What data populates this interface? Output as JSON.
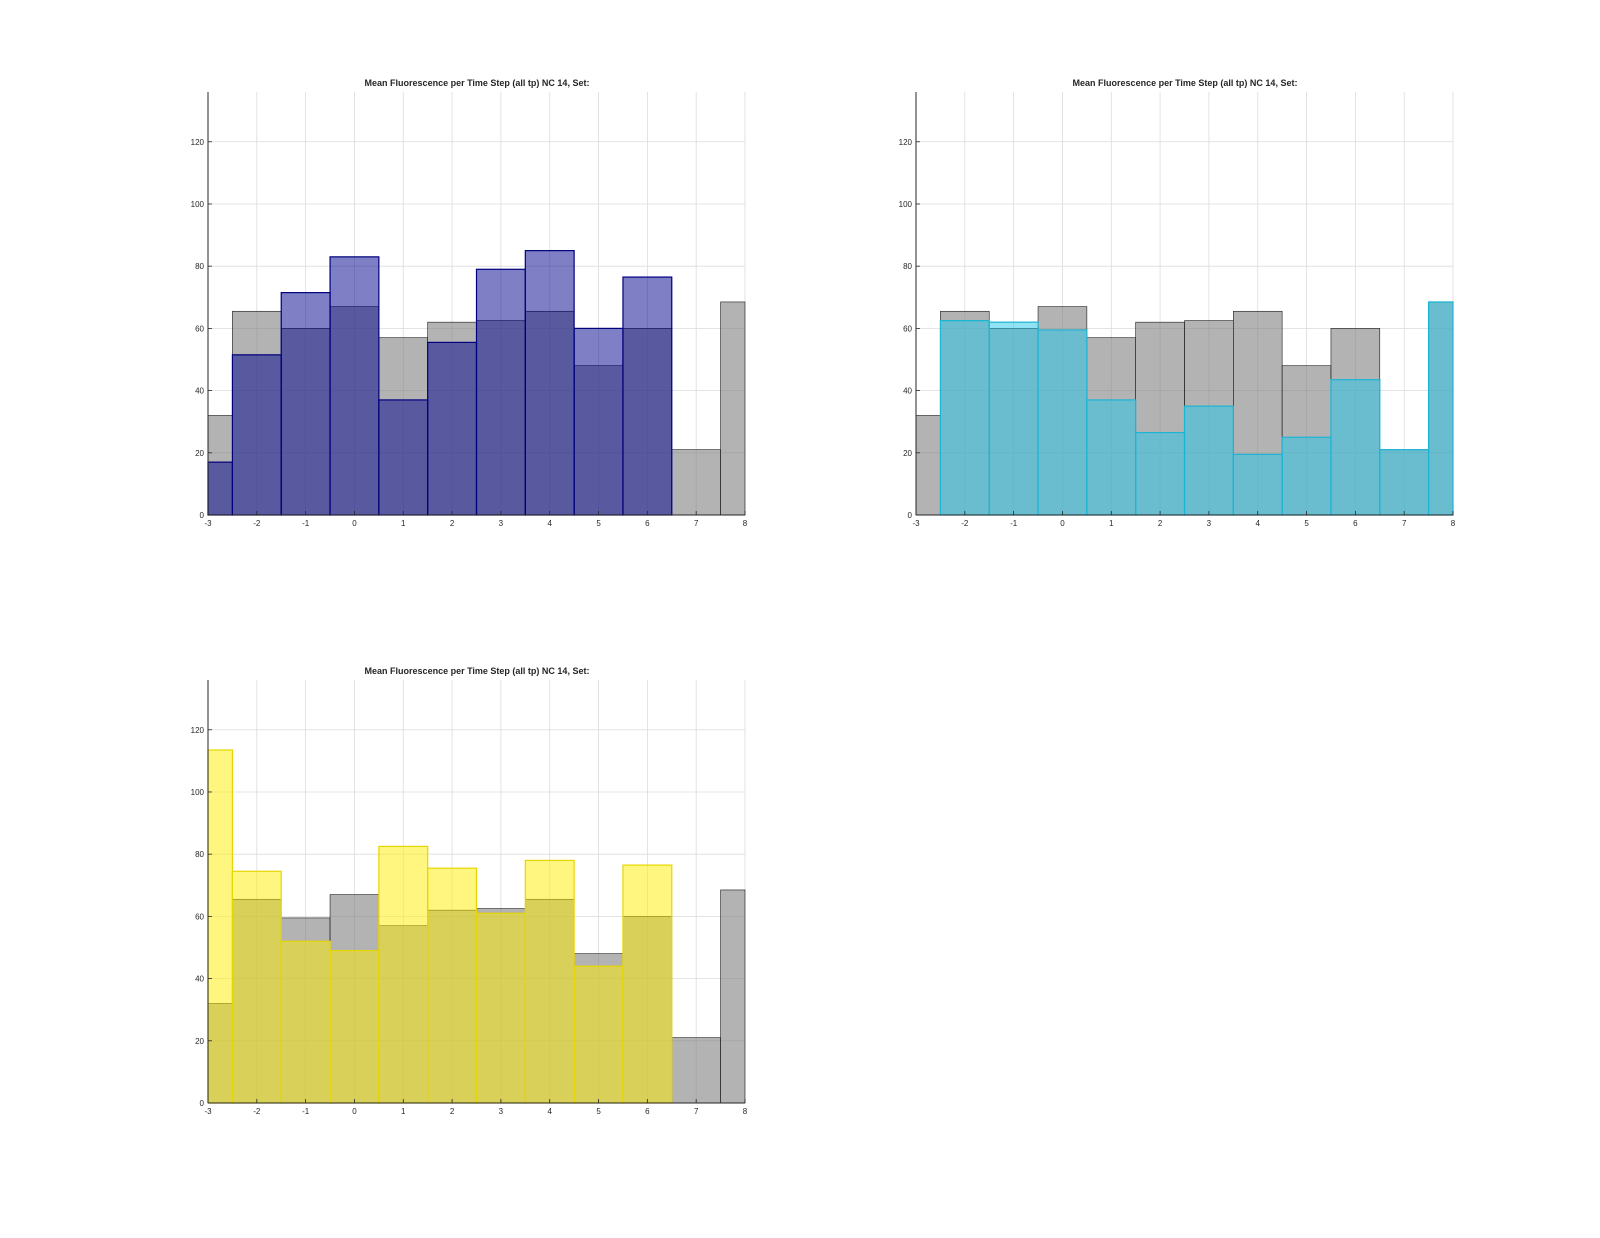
{
  "figure": {
    "charts": [
      {
        "title": "Mean Fluorescence per Time Step (all tp) NC 14, Set:",
        "xticks": [
          "-3",
          "-2",
          "-1",
          "0",
          "1",
          "2",
          "3",
          "4",
          "5",
          "6",
          "7",
          "8"
        ],
        "yticks": [
          "0",
          "20",
          "40",
          "60",
          "80",
          "100",
          "120"
        ]
      },
      {
        "title": "Mean Fluorescence per Time Step (all tp) NC 14, Set:",
        "xticks": [
          "-3",
          "-2",
          "-1",
          "0",
          "1",
          "2",
          "3",
          "4",
          "5",
          "6",
          "7",
          "8"
        ],
        "yticks": [
          "0",
          "20",
          "40",
          "60",
          "80",
          "100",
          "120"
        ]
      },
      {
        "title": "Mean Fluorescence per Time Step (all tp) NC 14, Set:",
        "xticks": [
          "-3",
          "-2",
          "-1",
          "0",
          "1",
          "2",
          "3",
          "4",
          "5",
          "6",
          "7",
          "8"
        ],
        "yticks": [
          "0",
          "20",
          "40",
          "60",
          "80",
          "100",
          "120"
        ]
      }
    ]
  },
  "chart_data": [
    {
      "type": "bar",
      "title": "Mean Fluorescence per Time Step (all tp) NC 14, Set:",
      "xlabel": "",
      "ylabel": "",
      "xlim": [
        -3,
        8
      ],
      "ylim": [
        0,
        136
      ],
      "grid": true,
      "bin_edges": [
        -3,
        -2.5,
        -1.5,
        -0.5,
        0.5,
        1.5,
        2.5,
        3.5,
        4.5,
        5.5,
        6.5,
        7.5,
        8
      ],
      "series": [
        {
          "color": "#808080",
          "values": [
            32,
            65.5,
            60,
            67,
            57,
            62,
            62.5,
            65.5,
            48,
            60,
            21,
            68.5
          ]
        },
        {
          "color": "#00008b",
          "values": [
            17,
            51.5,
            71.5,
            83,
            37,
            55.5,
            79,
            85,
            60,
            76.5,
            null,
            null
          ]
        }
      ]
    },
    {
      "type": "bar",
      "title": "Mean Fluorescence per Time Step (all tp) NC 14, Set:",
      "xlabel": "",
      "ylabel": "",
      "xlim": [
        -3,
        8
      ],
      "ylim": [
        0,
        136
      ],
      "grid": true,
      "bin_edges": [
        -3,
        -2.5,
        -1.5,
        -0.5,
        0.5,
        1.5,
        2.5,
        3.5,
        4.5,
        5.5,
        6.5,
        7.5,
        8
      ],
      "series": [
        {
          "color": "#808080",
          "values": [
            32,
            65.5,
            60,
            67,
            57,
            62,
            62.5,
            65.5,
            48,
            60,
            21,
            68.5
          ]
        },
        {
          "color": "#1fc8ec",
          "values": [
            null,
            62.5,
            62,
            59.5,
            37,
            26.5,
            35,
            19.5,
            25,
            43.5,
            21,
            68.5
          ]
        }
      ]
    },
    {
      "type": "bar",
      "title": "Mean Fluorescence per Time Step (all tp) NC 14, Set:",
      "xlabel": "",
      "ylabel": "",
      "xlim": [
        -3,
        8
      ],
      "ylim": [
        0,
        136
      ],
      "grid": true,
      "bin_edges": [
        -3,
        -2.5,
        -1.5,
        -0.5,
        0.5,
        1.5,
        2.5,
        3.5,
        4.5,
        5.5,
        6.5,
        7.5,
        8
      ],
      "series": [
        {
          "color": "#808080",
          "values": [
            32,
            65.5,
            59.5,
            67,
            57,
            62,
            62.5,
            65.5,
            48,
            60,
            21,
            68.5
          ]
        },
        {
          "color": "#ffee00",
          "values": [
            113.5,
            74.5,
            52,
            49,
            82.5,
            75.5,
            61,
            78,
            44,
            76.5,
            null,
            null
          ]
        }
      ]
    }
  ]
}
